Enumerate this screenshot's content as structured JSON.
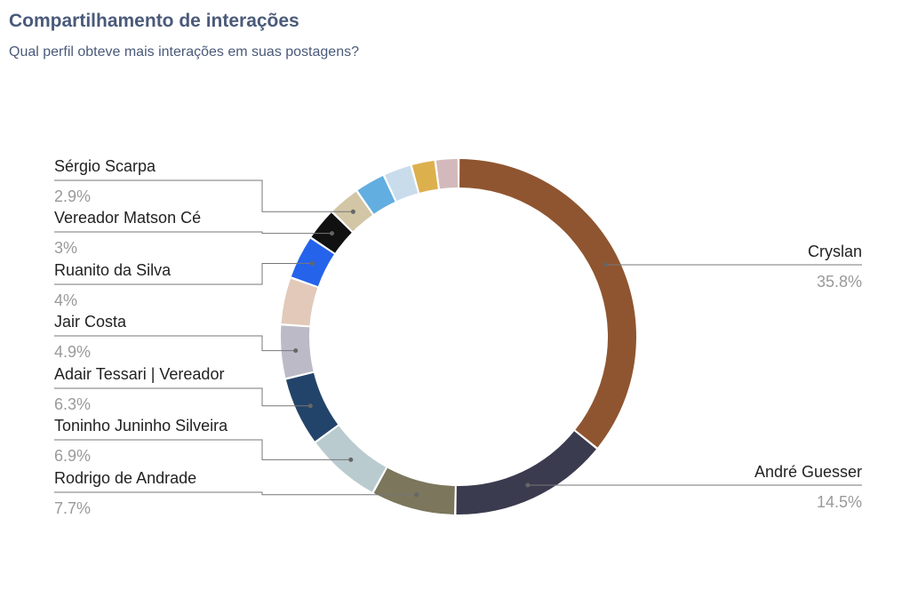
{
  "header": {
    "title": "Compartilhamento de interações",
    "subtitle": "Qual perfil obteve mais interações em suas postagens?"
  },
  "chart_data": {
    "type": "pie",
    "donut": true,
    "title": "Compartilhamento de interações",
    "subtitle": "Qual perfil obteve mais interações em suas postagens?",
    "slices": [
      {
        "label": "Cryslan",
        "value": 35.8,
        "value_label": "35.8%",
        "color": "#8f5530",
        "labeled": true
      },
      {
        "label": "André Guesser",
        "value": 14.5,
        "value_label": "14.5%",
        "color": "#3b3b4f",
        "labeled": true
      },
      {
        "label": "Rodrigo de Andrade",
        "value": 7.7,
        "value_label": "7.7%",
        "color": "#7b765c",
        "labeled": true
      },
      {
        "label": "Toninho Juninho Silveira",
        "value": 6.9,
        "value_label": "6.9%",
        "color": "#b9cbcf",
        "labeled": true
      },
      {
        "label": "Adair Tessari | Vereador",
        "value": 6.3,
        "value_label": "6.3%",
        "color": "#23446a",
        "labeled": true
      },
      {
        "label": "Jair Costa",
        "value": 4.9,
        "value_label": "4.9%",
        "color": "#bcbac6",
        "labeled": true
      },
      {
        "label": "",
        "value": 4.3,
        "value_label": "",
        "color": "#e2c9b9",
        "labeled": false
      },
      {
        "label": "Ruanito da Silva",
        "value": 4,
        "value_label": "4%",
        "color": "#2563eb",
        "labeled": true
      },
      {
        "label": "Vereador Matson Cé",
        "value": 3,
        "value_label": "3%",
        "color": "#111111",
        "labeled": true
      },
      {
        "label": "Sérgio Scarpa",
        "value": 2.9,
        "value_label": "2.9%",
        "color": "#d2c6a6",
        "labeled": true
      },
      {
        "label": "",
        "value": 2.8,
        "value_label": "",
        "color": "#62aee0",
        "labeled": false
      },
      {
        "label": "",
        "value": 2.6,
        "value_label": "",
        "color": "#c9dcec",
        "labeled": false
      },
      {
        "label": "",
        "value": 2.2,
        "value_label": "",
        "color": "#ddb04e",
        "labeled": false
      },
      {
        "label": "",
        "value": 2.1,
        "value_label": "",
        "color": "#d3b9bb",
        "labeled": false
      }
    ],
    "legend": "none",
    "label_placement": "outside-with-leader-lines"
  }
}
